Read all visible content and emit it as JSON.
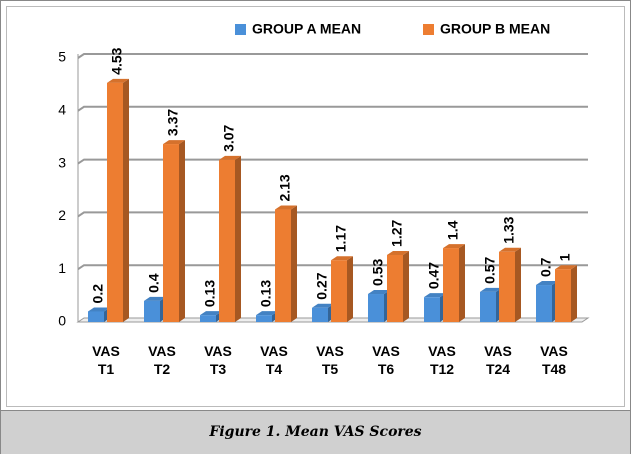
{
  "chart_data": {
    "type": "bar",
    "categories": [
      "VAS T1",
      "VAS T2",
      "VAS T3",
      "VAS T4",
      "VAS T5",
      "VAS T6",
      "VAS T12",
      "VAS T24",
      "VAS T48"
    ],
    "series": [
      {
        "name": "GROUP A MEAN",
        "color": "#4a90d9",
        "values": [
          0.2,
          0.4,
          0.13,
          0.13,
          0.27,
          0.53,
          0.47,
          0.57,
          0.7
        ]
      },
      {
        "name": "GROUP B MEAN",
        "color": "#ed7d31",
        "values": [
          4.53,
          3.37,
          3.07,
          2.13,
          1.17,
          1.27,
          1.4,
          1.33,
          1
        ]
      }
    ],
    "ylim": [
      0,
      5
    ],
    "yticks": [
      0,
      1,
      2,
      3,
      4,
      5
    ],
    "grid": true,
    "legend": "top"
  },
  "caption": "Figure 1. Mean VAS Scores"
}
